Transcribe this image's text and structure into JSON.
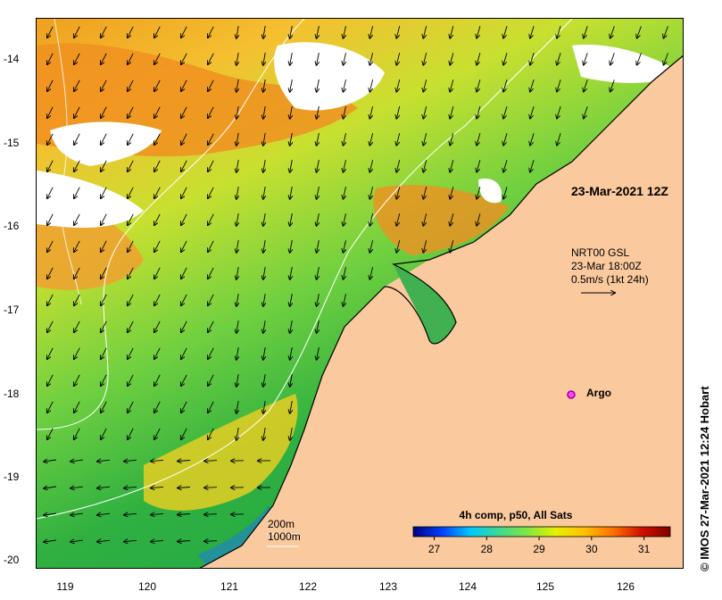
{
  "map": {
    "lon_range": [
      118.6,
      126.7
    ],
    "lat_range": [
      -20.1,
      -13.5
    ],
    "x_ticks": [
      "119",
      "120",
      "121",
      "122",
      "123",
      "124",
      "125",
      "126"
    ],
    "y_ticks": [
      "-14",
      "-15",
      "-16",
      "-17",
      "-18",
      "-19",
      "-20"
    ],
    "colors": {
      "land": "#fac99e",
      "cloud": "#ffffff",
      "coast": "#000000",
      "isobath": "#ffffff"
    }
  },
  "labels": {
    "timestamp": "23-Mar-2021 12Z",
    "current_source": "NRT00 GSL",
    "current_time": "23-Mar 18:00Z",
    "current_scale": "0.5m/s (1kt 24h)",
    "argo": "Argo",
    "isobath_200": "200m",
    "isobath_1000": "1000m",
    "side_credit": "© IMOS 27-Mar-2021 12:24 Hobart"
  },
  "colorbar": {
    "title": "4h comp, p50, All Sats",
    "ticks": [
      "27",
      "28",
      "29",
      "30",
      "31"
    ],
    "range": [
      26.6,
      31.5
    ],
    "stops": [
      "#000080",
      "#0040ff",
      "#00c8ff",
      "#40d890",
      "#80e840",
      "#e8f000",
      "#ffc000",
      "#ff7000",
      "#d01000",
      "#800000"
    ]
  }
}
